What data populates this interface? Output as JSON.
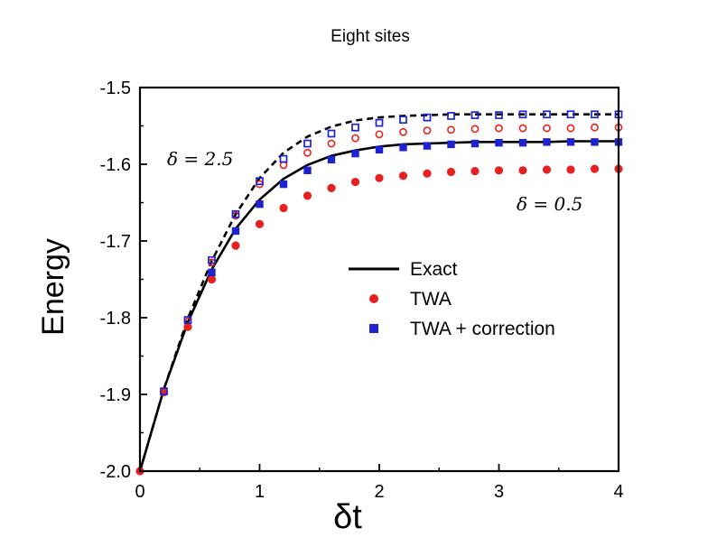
{
  "chart_data": {
    "type": "line",
    "title": "Eight sites",
    "xlabel": "δt",
    "ylabel": "Energy",
    "xlim": [
      0,
      4
    ],
    "ylim": [
      -2.0,
      -1.5
    ],
    "x_ticks": [
      0,
      1,
      2,
      3,
      4
    ],
    "y_ticks": [
      -2.0,
      -1.9,
      -1.8,
      -1.7,
      -1.6,
      -1.5
    ],
    "x_tick_labels": [
      "0",
      "1",
      "2",
      "3",
      "4"
    ],
    "y_tick_labels": [
      "-2.0",
      "-1.9",
      "-1.8",
      "-1.7",
      "-1.6",
      "-1.5"
    ],
    "grid": false,
    "legend_position": "center-right",
    "legend": [
      {
        "label": "Exact",
        "style": "solid-line",
        "color": "#000000"
      },
      {
        "label": "TWA",
        "style": "circle",
        "color": "#e8201f"
      },
      {
        "label": "TWA + correction",
        "style": "square",
        "color": "#1f23cf"
      }
    ],
    "annotations": [
      {
        "text": "δ = 2.5",
        "near": "upper-left curves"
      },
      {
        "text": "δ = 0.5",
        "near": "right, below curves"
      }
    ],
    "x": [
      0,
      0.2,
      0.4,
      0.6,
      0.8,
      1.0,
      1.2,
      1.4,
      1.6,
      1.8,
      2.0,
      2.2,
      2.4,
      2.6,
      2.8,
      3.0,
      3.2,
      3.4,
      3.6,
      3.8,
      4.0
    ],
    "series": [
      {
        "name": "Exact",
        "group": "δ = 0.5",
        "style": "solid-line",
        "values": [
          -2.0,
          -1.893,
          -1.806,
          -1.737,
          -1.684,
          -1.646,
          -1.619,
          -1.601,
          -1.589,
          -1.582,
          -1.577,
          -1.574,
          -1.573,
          -1.572,
          -1.571,
          -1.571,
          -1.571,
          -1.571,
          -1.57,
          -1.57,
          -1.57
        ]
      },
      {
        "name": "Exact",
        "group": "δ = 2.5",
        "style": "dashed-line",
        "values": [
          -2.0,
          -1.893,
          -1.801,
          -1.726,
          -1.665,
          -1.618,
          -1.585,
          -1.564,
          -1.551,
          -1.543,
          -1.539,
          -1.537,
          -1.536,
          -1.535,
          -1.535,
          -1.535,
          -1.535,
          -1.535,
          -1.535,
          -1.535,
          -1.535
        ]
      },
      {
        "name": "TWA",
        "group": "δ = 0.5",
        "style": "filled-circle",
        "x": [
          0,
          0.2,
          0.4,
          0.6,
          0.8,
          1.0,
          1.2,
          1.4,
          1.6,
          1.8,
          2.0,
          2.2,
          2.4,
          2.6,
          2.8,
          3.0,
          3.2,
          3.4,
          3.6,
          3.8,
          4.0
        ],
        "values": [
          -2.0,
          -1.897,
          -1.812,
          -1.75,
          -1.706,
          -1.678,
          -1.657,
          -1.641,
          -1.631,
          -1.623,
          -1.618,
          -1.615,
          -1.612,
          -1.61,
          -1.609,
          -1.608,
          -1.608,
          -1.607,
          -1.607,
          -1.606,
          -1.606
        ]
      },
      {
        "name": "TWA",
        "group": "δ = 2.5",
        "style": "open-circle",
        "x": [
          0.2,
          0.4,
          0.6,
          0.8,
          1.0,
          1.2,
          1.4,
          1.6,
          1.8,
          2.0,
          2.2,
          2.4,
          2.6,
          2.8,
          3.0,
          3.2,
          3.4,
          3.6,
          3.8,
          4.0
        ],
        "values": [
          -1.897,
          -1.805,
          -1.728,
          -1.667,
          -1.626,
          -1.601,
          -1.585,
          -1.573,
          -1.566,
          -1.561,
          -1.558,
          -1.556,
          -1.555,
          -1.554,
          -1.553,
          -1.553,
          -1.553,
          -1.553,
          -1.552,
          -1.552
        ]
      },
      {
        "name": "TWA + correction",
        "group": "δ = 0.5",
        "style": "filled-square",
        "x": [
          0.6,
          0.8,
          1.0,
          1.2,
          1.4,
          1.6,
          1.8,
          2.0,
          2.2,
          2.4,
          2.6,
          2.8,
          3.0,
          3.2,
          3.4,
          3.6,
          3.8,
          4.0
        ],
        "values": [
          -1.741,
          -1.687,
          -1.652,
          -1.626,
          -1.608,
          -1.594,
          -1.586,
          -1.581,
          -1.578,
          -1.576,
          -1.574,
          -1.573,
          -1.572,
          -1.572,
          -1.571,
          -1.571,
          -1.571,
          -1.571
        ]
      },
      {
        "name": "TWA + correction",
        "group": "δ = 2.5",
        "style": "open-square",
        "x": [
          0.2,
          0.4,
          0.6,
          0.8,
          1.0,
          1.2,
          1.4,
          1.6,
          1.8,
          2.0,
          2.2,
          2.4,
          2.6,
          2.8,
          3.0,
          3.2,
          3.4,
          3.6,
          3.8,
          4.0
        ],
        "values": [
          -1.896,
          -1.803,
          -1.725,
          -1.665,
          -1.622,
          -1.593,
          -1.573,
          -1.56,
          -1.552,
          -1.546,
          -1.542,
          -1.539,
          -1.537,
          -1.536,
          -1.536,
          -1.535,
          -1.535,
          -1.535,
          -1.535,
          -1.535
        ]
      }
    ]
  }
}
